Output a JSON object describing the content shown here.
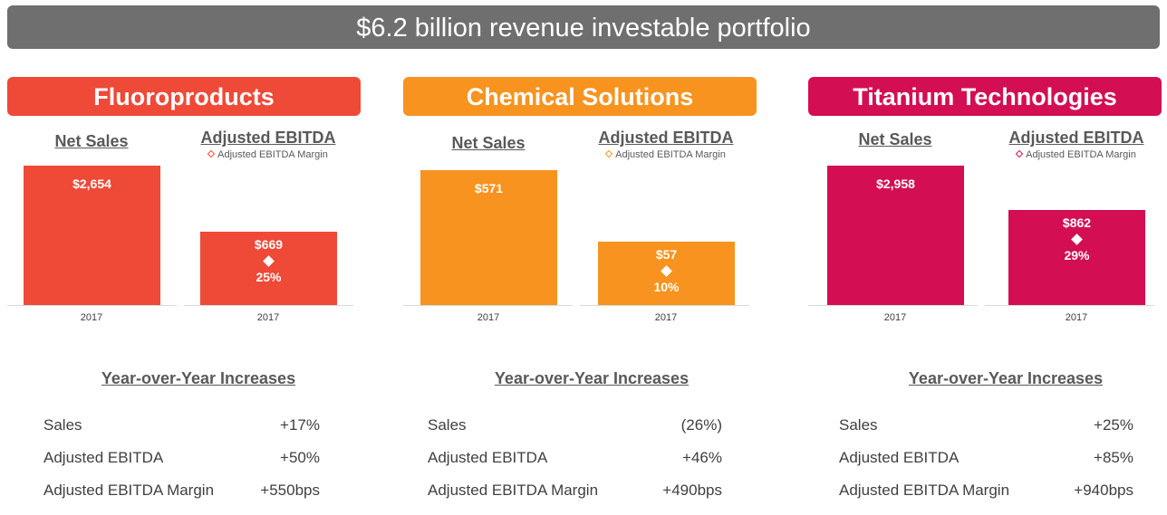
{
  "title": "$6.2 billion revenue investable portfolio",
  "panels": [
    {
      "name": "Fluoroproducts",
      "color": "#EF4938",
      "net_sales_label": "Net Sales",
      "ebitda_label": "Adjusted EBITDA",
      "legend": "Adjusted EBITDA Margin",
      "net_sales": "$2,654",
      "ebitda": "$669",
      "margin": "25%",
      "year": "2017",
      "yoy_title": "Year-over-Year Increases",
      "rows": [
        {
          "label": "Sales",
          "value": "+17%"
        },
        {
          "label": "Adjusted EBITDA",
          "value": "+50%"
        },
        {
          "label": "Adjusted EBITDA Margin",
          "value": "+550bps"
        }
      ]
    },
    {
      "name": "Chemical Solutions",
      "color": "#F7931E",
      "net_sales_label": "Net Sales",
      "ebitda_label": "Adjusted EBITDA",
      "legend": "Adjusted EBITDA Margin",
      "net_sales": "$571",
      "ebitda": "$57",
      "margin": "10%",
      "year": "2017",
      "yoy_title": "Year-over-Year Increases",
      "rows": [
        {
          "label": "Sales",
          "value": "(26%)"
        },
        {
          "label": "Adjusted EBITDA",
          "value": "+46%"
        },
        {
          "label": "Adjusted EBITDA Margin",
          "value": "+490bps"
        }
      ]
    },
    {
      "name": "Titanium Technologies",
      "color": "#D40E53",
      "net_sales_label": "Net Sales",
      "ebitda_label": "Adjusted EBITDA",
      "legend": "Adjusted EBITDA Margin",
      "net_sales": "$2,958",
      "ebitda": "$862",
      "margin": "29%",
      "year": "2017",
      "yoy_title": "Year-over-Year Increases",
      "rows": [
        {
          "label": "Sales",
          "value": "+25%"
        },
        {
          "label": "Adjusted EBITDA",
          "value": "+85%"
        },
        {
          "label": "Adjusted EBITDA Margin",
          "value": "+940bps"
        }
      ]
    }
  ]
}
